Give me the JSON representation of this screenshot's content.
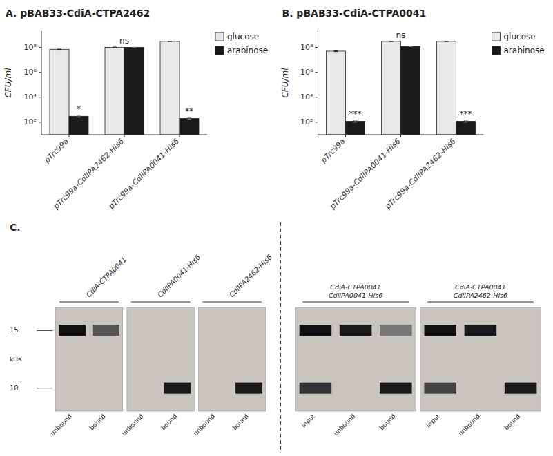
{
  "chart_data": [
    {
      "type": "bar",
      "title": "A. pBAB33-CdiA-CTPA2462",
      "categories": [
        "pTrc99a",
        "pTrc99a-CdlIPA2462-His6",
        "pTrc99a-CdlIPA0041-His6"
      ],
      "series": [
        {
          "name": "glucose",
          "color": "#e8e8e8",
          "values": [
            70000000.0,
            100000000.0,
            300000000.0
          ],
          "errors": [
            2000000.0,
            5000000.0,
            0
          ]
        },
        {
          "name": "arabinose",
          "color": "#1a1a1a",
          "values": [
            300.0,
            100000000.0,
            200.0
          ],
          "errors": [
            50.0,
            5000000.0,
            30.0
          ]
        }
      ],
      "annotations": [
        {
          "text": "*",
          "category": "pTrc99a",
          "series": "arabinose"
        },
        {
          "text": "ns",
          "category": "pTrc99a-CdlIPA2462-His6"
        },
        {
          "text": "**",
          "category": "pTrc99a-CdlIPA0041-His6",
          "series": "arabinose"
        }
      ],
      "log": "y",
      "ylim": [
        10,
        2000000000.0
      ],
      "yticks": [
        {
          "value": 100,
          "label": "10²"
        },
        {
          "value": 10000,
          "label": "10⁴"
        },
        {
          "value": 1000000,
          "label": "10⁶"
        },
        {
          "value": 100000000,
          "label": "10⁸"
        }
      ],
      "ylabel": "CFU/ml",
      "grid": false,
      "legend": "upper-right"
    },
    {
      "type": "bar",
      "title": "B. pBAB33-CdiA-CTPA0041",
      "categories": [
        "pTrc99a",
        "pTrc99a-CdlIPA0041-His6",
        "pTrc99a-CdlIPA2462-His6"
      ],
      "series": [
        {
          "name": "glucose",
          "color": "#e8e8e8",
          "values": [
            50000000.0,
            300000000.0,
            300000000.0
          ],
          "errors": [
            4000000.0,
            0,
            0
          ]
        },
        {
          "name": "arabinose",
          "color": "#1a1a1a",
          "values": [
            120.0,
            120000000.0,
            120.0
          ],
          "errors": [
            20.0,
            7000000.0,
            20.0
          ]
        }
      ],
      "annotations": [
        {
          "text": "***",
          "category": "pTrc99a",
          "series": "arabinose"
        },
        {
          "text": "ns",
          "category": "pTrc99a-CdlIPA0041-His6"
        },
        {
          "text": "***",
          "category": "pTrc99a-CdlIPA2462-His6",
          "series": "arabinose"
        }
      ],
      "log": "y",
      "ylim": [
        10,
        2000000000.0
      ],
      "yticks": [
        {
          "value": 100,
          "label": "10²"
        },
        {
          "value": 10000,
          "label": "10⁴"
        },
        {
          "value": 1000000,
          "label": "10⁶"
        },
        {
          "value": 100000000,
          "label": "10⁸"
        }
      ],
      "ylabel": "CFU/ml",
      "grid": false,
      "legend": "upper-right"
    },
    {
      "type": "gel",
      "title": "C.",
      "ylabel": "kDa",
      "ylim": [
        8,
        17
      ],
      "yticks": [
        10,
        15
      ],
      "gels": [
        {
          "groups": [
            {
              "name": "CdiA-CTPA0041",
              "lanes": [
                {
                  "label": "unbound",
                  "bands": [
                    15
                  ],
                  "colors": [
                    "#111111"
                  ]
                },
                {
                  "label": "bound",
                  "bands": [
                    15
                  ],
                  "colors": [
                    "#555555"
                  ]
                }
              ]
            },
            {
              "name": "CdlIPA0041-His6",
              "lanes": [
                {
                  "label": "unbound",
                  "bands": [],
                  "colors": []
                },
                {
                  "label": "bound",
                  "bands": [
                    10
                  ],
                  "colors": [
                    "#1a1a1a"
                  ]
                }
              ]
            },
            {
              "name": "CdlIPA2462-His6",
              "lanes": [
                {
                  "label": "unbound",
                  "bands": [],
                  "colors": []
                },
                {
                  "label": "bound",
                  "bands": [
                    10
                  ],
                  "colors": [
                    "#1a1a1a"
                  ]
                }
              ]
            }
          ]
        },
        {
          "groups": [
            {
              "name": "CdiA-CTPA0041\nCdlIPA0041-His6",
              "lanes": [
                {
                  "label": "input",
                  "bands": [
                    15,
                    10
                  ],
                  "colors": [
                    "#111111",
                    "#333333"
                  ]
                },
                {
                  "label": "unbound",
                  "bands": [
                    15
                  ],
                  "colors": [
                    "#1a1a1a"
                  ]
                },
                {
                  "label": "bound",
                  "bands": [
                    10,
                    15
                  ],
                  "colors": [
                    "#1a1a1a",
                    "#777777"
                  ]
                }
              ]
            },
            {
              "name": "CdiA-CTPA0041\nCdlIPA2462-His6",
              "lanes": [
                {
                  "label": "input",
                  "bands": [
                    15,
                    10
                  ],
                  "colors": [
                    "#111111",
                    "#444444"
                  ]
                },
                {
                  "label": "unbound",
                  "bands": [
                    15
                  ],
                  "colors": [
                    "#1a1a1a"
                  ]
                },
                {
                  "label": "bound",
                  "bands": [
                    10
                  ],
                  "colors": [
                    "#1a1a1a"
                  ]
                }
              ]
            }
          ]
        }
      ]
    }
  ]
}
